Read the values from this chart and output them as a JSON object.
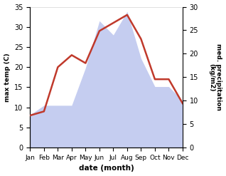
{
  "months": [
    "Jan",
    "Feb",
    "Mar",
    "Apr",
    "May",
    "Jun",
    "Jul",
    "Aug",
    "Sep",
    "Oct",
    "Nov",
    "Dec"
  ],
  "temperature": [
    8,
    9,
    20,
    23,
    21,
    29,
    31,
    33,
    27,
    17,
    17,
    11
  ],
  "precipitation": [
    7,
    9,
    9,
    9,
    17,
    27,
    24,
    29,
    19,
    13,
    13,
    10
  ],
  "temp_color": "#c0392b",
  "precip_fill_color": "#c5cdf0",
  "xlabel": "date (month)",
  "ylabel_left": "max temp (C)",
  "ylabel_right": "med. precipitation\n(kg/m2)",
  "ylim_left": [
    0,
    35
  ],
  "ylim_right": [
    0,
    30
  ],
  "yticks_left": [
    0,
    5,
    10,
    15,
    20,
    25,
    30,
    35
  ],
  "yticks_right": [
    0,
    5,
    10,
    15,
    20,
    25,
    30
  ],
  "background_color": "#ffffff",
  "temp_linewidth": 1.8,
  "figsize": [
    3.18,
    2.47
  ],
  "dpi": 100
}
